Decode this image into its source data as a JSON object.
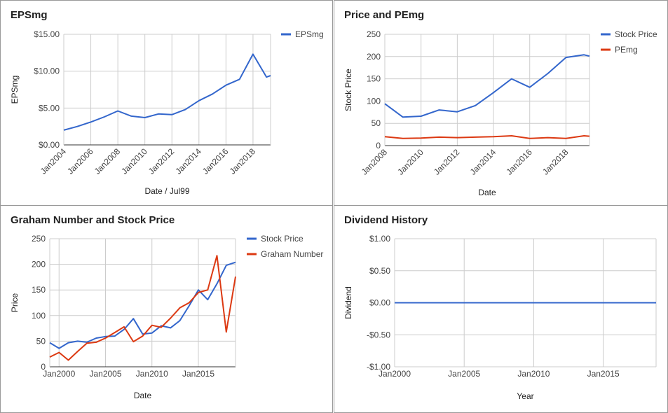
{
  "panels": {
    "eps": {
      "title": "EPSmg"
    },
    "price": {
      "title": "Price and PEmg"
    },
    "graham": {
      "title": "Graham Number and Stock Price"
    },
    "dividend": {
      "title": "Dividend History"
    }
  },
  "chart_data": [
    {
      "id": "eps",
      "type": "line",
      "title": "EPSmg",
      "xlabel": "Date / Jul99",
      "ylabel": "EPSmg",
      "ylim": [
        0,
        15
      ],
      "yticks": [
        0,
        5,
        10,
        15
      ],
      "ytick_labels": [
        "$0.00",
        "$5.00",
        "$10.00",
        "$15.00"
      ],
      "xlim": [
        2004,
        2019.3
      ],
      "xticks": [
        2004,
        2006,
        2008,
        2010,
        2012,
        2014,
        2016,
        2018
      ],
      "xtick_labels": [
        "Jan2004",
        "Jan2006",
        "Jan2008",
        "Jan2010",
        "Jan2012",
        "Jan2014",
        "Jan2016",
        "Jan2018"
      ],
      "legend": "top-right",
      "series": [
        {
          "name": "EPSmg",
          "color": "#3366cc",
          "x": [
            2004,
            2005,
            2006,
            2007,
            2008,
            2009,
            2010,
            2011,
            2012,
            2013,
            2014,
            2015,
            2016,
            2017,
            2018,
            2019,
            2019.3
          ],
          "y": [
            2.0,
            2.5,
            3.1,
            3.8,
            4.6,
            3.9,
            3.7,
            4.2,
            4.1,
            4.8,
            6.0,
            6.9,
            8.1,
            8.9,
            12.3,
            9.2,
            9.4
          ]
        }
      ]
    },
    {
      "id": "price",
      "type": "line",
      "title": "Price and PEmg",
      "xlabel": "Date",
      "ylabel": "Stock Price",
      "ylim": [
        0,
        250
      ],
      "yticks": [
        0,
        50,
        100,
        150,
        200,
        250
      ],
      "ytick_labels": [
        "0",
        "50",
        "100",
        "150",
        "200",
        "250"
      ],
      "xlim": [
        2008,
        2019.3
      ],
      "xticks": [
        2008,
        2010,
        2012,
        2014,
        2016,
        2018
      ],
      "xtick_labels": [
        "Jan2008",
        "Jan2010",
        "Jan2012",
        "Jan2014",
        "Jan2016",
        "Jan2018"
      ],
      "legend": "top-right",
      "series": [
        {
          "name": "Stock Price",
          "color": "#3366cc",
          "x": [
            2008,
            2009,
            2010,
            2011,
            2012,
            2013,
            2014,
            2015,
            2016,
            2017,
            2018,
            2019,
            2019.3
          ],
          "y": [
            94,
            64,
            66,
            80,
            76,
            90,
            119,
            150,
            131,
            162,
            198,
            204,
            201
          ]
        },
        {
          "name": "PEmg",
          "color": "#dc3912",
          "x": [
            2008,
            2009,
            2010,
            2011,
            2012,
            2013,
            2014,
            2015,
            2016,
            2017,
            2018,
            2019,
            2019.3
          ],
          "y": [
            20,
            16,
            17,
            19,
            18,
            19,
            20,
            22,
            16,
            18,
            16,
            22,
            21
          ]
        }
      ]
    },
    {
      "id": "graham",
      "type": "line",
      "title": "Graham Number and Stock Price",
      "xlabel": "Date",
      "ylabel": "Price",
      "ylim": [
        0,
        250
      ],
      "yticks": [
        0,
        50,
        100,
        150,
        200,
        250
      ],
      "ytick_labels": [
        "0",
        "50",
        "100",
        "150",
        "200",
        "250"
      ],
      "xlim": [
        1999,
        2019
      ],
      "xticks": [
        2000,
        2005,
        2010,
        2015
      ],
      "xtick_labels": [
        "Jan2000",
        "Jan2005",
        "Jan2010",
        "Jan2015"
      ],
      "legend": "top-right",
      "series": [
        {
          "name": "Stock Price",
          "color": "#3366cc",
          "x": [
            1999,
            2000,
            2001,
            2002,
            2003,
            2004,
            2005,
            2006,
            2007,
            2008,
            2009,
            2010,
            2011,
            2012,
            2013,
            2014,
            2015,
            2016,
            2017,
            2018,
            2019
          ],
          "y": [
            47,
            36,
            47,
            50,
            48,
            56,
            59,
            60,
            73,
            94,
            64,
            66,
            80,
            76,
            90,
            119,
            150,
            131,
            162,
            198,
            204
          ]
        },
        {
          "name": "Graham Number",
          "color": "#dc3912",
          "x": [
            1999,
            2000,
            2001,
            2002,
            2003,
            2004,
            2005,
            2006,
            2007,
            2008,
            2009,
            2010,
            2011,
            2012,
            2013,
            2014,
            2015,
            2016,
            2017,
            2018,
            2019
          ],
          "y": [
            19,
            28,
            13,
            30,
            46,
            48,
            56,
            67,
            78,
            49,
            60,
            81,
            77,
            95,
            115,
            125,
            145,
            150,
            217,
            68,
            176
          ]
        }
      ]
    },
    {
      "id": "dividend",
      "type": "line",
      "title": "Dividend History",
      "xlabel": "Year",
      "ylabel": "Dividend",
      "ylim": [
        -1,
        1
      ],
      "yticks": [
        -1,
        -0.5,
        0,
        0.5,
        1
      ],
      "ytick_labels": [
        "-$1.00",
        "-$0.50",
        "$0.00",
        "$0.50",
        "$1.00"
      ],
      "xlim": [
        2000,
        2018.8
      ],
      "xticks": [
        2000,
        2005,
        2010,
        2015
      ],
      "xtick_labels": [
        "Jan2000",
        "Jan2005",
        "Jan2010",
        "Jan2015"
      ],
      "legend": "none",
      "series": [
        {
          "color": "#3366cc",
          "x": [
            2000,
            2018.8
          ],
          "y": [
            0,
            0
          ]
        }
      ]
    }
  ]
}
